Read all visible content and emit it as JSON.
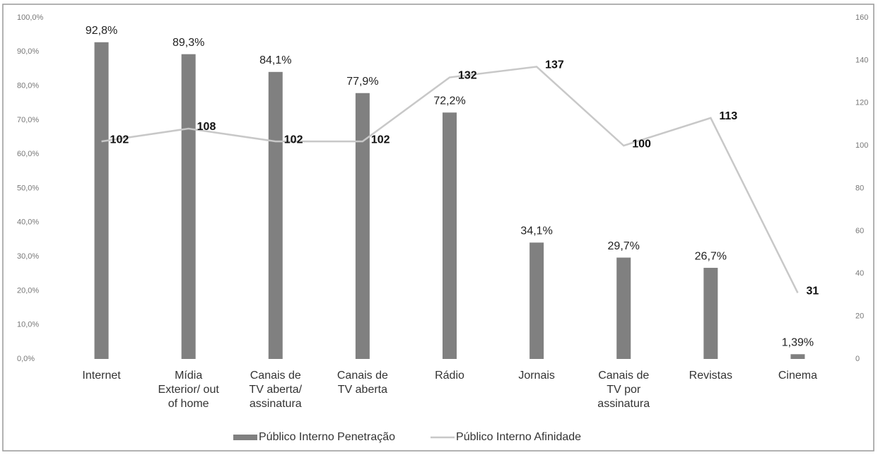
{
  "chart_data": {
    "type": "bar_line",
    "categories": [
      "Internet",
      "Mídia Exterior/ out of home",
      "Canais de TV aberta/ assinatura",
      "Canais de TV aberta",
      "Rádio",
      "Jornais",
      "Canais de TV por assinatura",
      "Revistas",
      "Cinema"
    ],
    "series": [
      {
        "name": "Público Interno Penetração",
        "type": "bar",
        "color": "#808080",
        "values": [
          92.8,
          89.3,
          84.1,
          77.9,
          72.2,
          34.1,
          29.7,
          26.7,
          1.39
        ],
        "value_labels": [
          "92,8%",
          "89,3%",
          "84,1%",
          "77,9%",
          "72,2%",
          "34,1%",
          "29,7%",
          "26,7%",
          "1,39%"
        ]
      },
      {
        "name": "Público Interno Afinidade",
        "type": "line",
        "axis": "y2",
        "color": "#c8c8c8",
        "values": [
          102,
          108,
          102,
          102,
          132,
          137,
          100,
          113,
          31
        ]
      }
    ],
    "ylim": [
      0,
      100
    ],
    "yticks": [
      {
        "value": 0,
        "label": "0,0%"
      },
      {
        "value": 10,
        "label": "10,0%"
      },
      {
        "value": 20,
        "label": "20,0%"
      },
      {
        "value": 30,
        "label": "30,0%"
      },
      {
        "value": 40,
        "label": "40,0%"
      },
      {
        "value": 50,
        "label": "50,0%"
      },
      {
        "value": 60,
        "label": "60,0%"
      },
      {
        "value": 70,
        "label": "70,0%"
      },
      {
        "value": 80,
        "label": "80,0%"
      },
      {
        "value": 90,
        "label": "90,0%"
      },
      {
        "value": 100,
        "label": "100,0%"
      }
    ],
    "y2lim": [
      0,
      160
    ],
    "y2ticks": [
      0,
      20,
      40,
      60,
      80,
      100,
      120,
      140,
      160
    ],
    "legend": "bottom"
  }
}
